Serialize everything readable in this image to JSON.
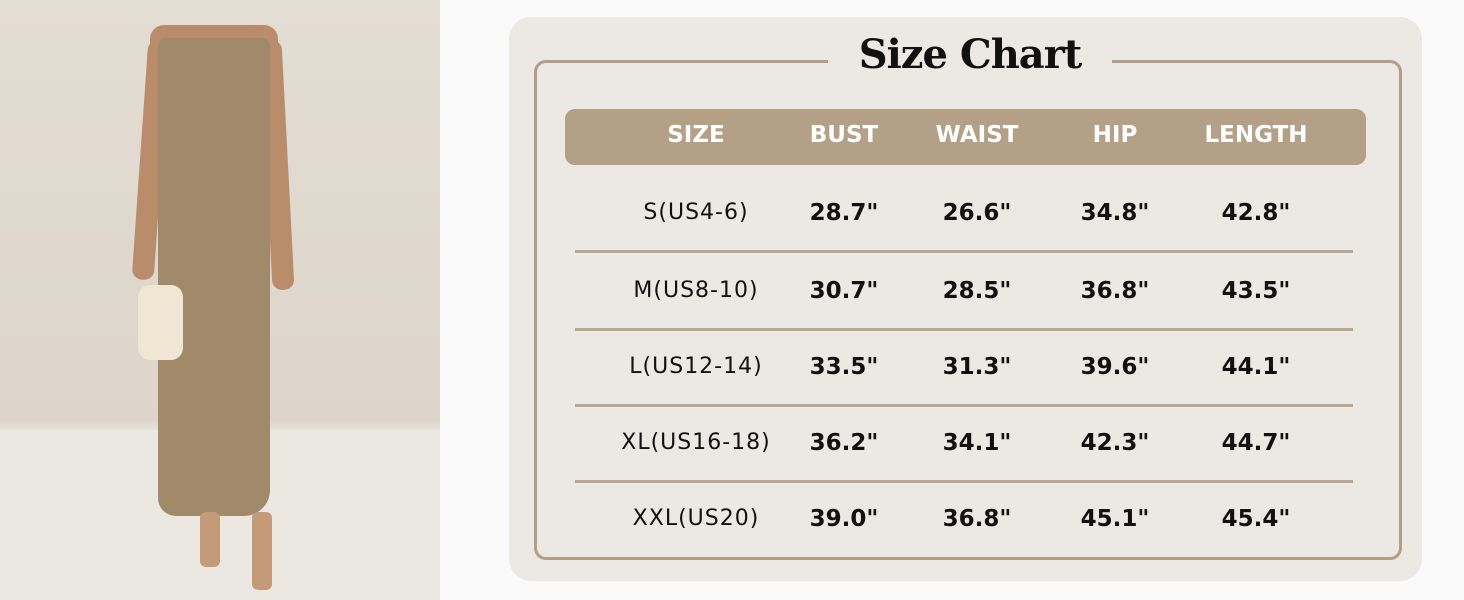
{
  "title": "Size Chart",
  "colors": {
    "header_bg": "#b4a087",
    "panel_bg": "#ece8e3",
    "frame": "#b29f86",
    "dress": "#a08a6a"
  },
  "headers": [
    "SIZE",
    "BUST",
    "WAIST",
    "HIP",
    "LENGTH"
  ],
  "rows": [
    [
      "S(US4-6)",
      "28.7\"",
      "26.6\"",
      "34.8\"",
      "42.8\""
    ],
    [
      "M(US8-10)",
      "30.7\"",
      "28.5\"",
      "36.8\"",
      "43.5\""
    ],
    [
      "L(US12-14)",
      "33.5\"",
      "31.3\"",
      "39.6\"",
      "44.1\""
    ],
    [
      "XL(US16-18)",
      "36.2\"",
      "34.1\"",
      "42.3\"",
      "44.7\""
    ],
    [
      "XXL(US20)",
      "39.0\"",
      "36.8\"",
      "45.1\"",
      "45.4\""
    ]
  ]
}
